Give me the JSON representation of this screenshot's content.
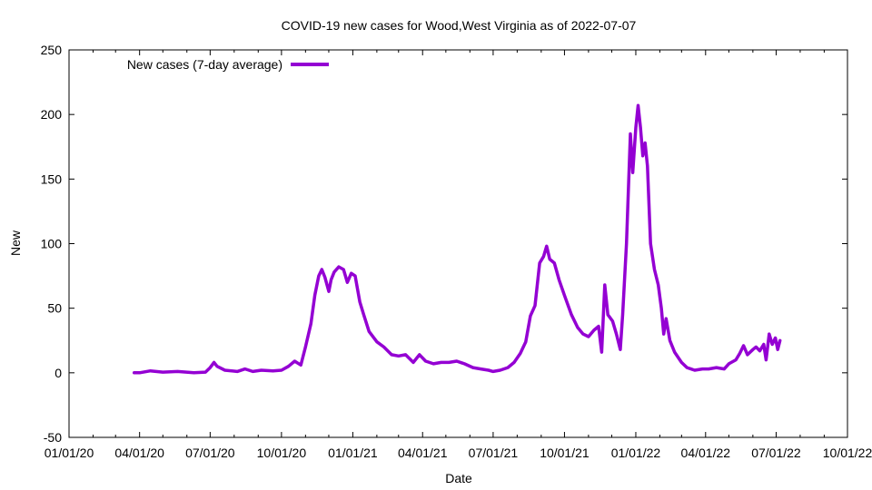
{
  "chart_data": {
    "type": "line",
    "title": "COVID-19 new cases for Wood,West Virginia as of 2022-07-07",
    "xlabel": "Date",
    "ylabel": "New",
    "ylim": [
      -50,
      250
    ],
    "yticks": [
      -50,
      0,
      50,
      100,
      150,
      200,
      250
    ],
    "xlim": [
      "2020-01-01",
      "2022-10-01"
    ],
    "xticks": [
      {
        "date": "2020-01-01",
        "label": "01/01/20"
      },
      {
        "date": "2020-04-01",
        "label": "04/01/20"
      },
      {
        "date": "2020-07-01",
        "label": "07/01/20"
      },
      {
        "date": "2020-10-01",
        "label": "10/01/20"
      },
      {
        "date": "2021-01-01",
        "label": "01/01/21"
      },
      {
        "date": "2021-04-01",
        "label": "04/01/21"
      },
      {
        "date": "2021-07-01",
        "label": "07/01/21"
      },
      {
        "date": "2021-10-01",
        "label": "10/01/21"
      },
      {
        "date": "2022-01-01",
        "label": "01/01/22"
      },
      {
        "date": "2022-04-01",
        "label": "04/01/22"
      },
      {
        "date": "2022-07-01",
        "label": "07/01/22"
      },
      {
        "date": "2022-10-01",
        "label": "10/01/22"
      }
    ],
    "grid": false,
    "legend_position": "top-left",
    "series": [
      {
        "name": "New cases (7-day average)",
        "color": "#9400d3",
        "points": [
          [
            "2020-03-25",
            0
          ],
          [
            "2020-04-01",
            0
          ],
          [
            "2020-04-15",
            1.5
          ],
          [
            "2020-05-01",
            0.5
          ],
          [
            "2020-05-20",
            1
          ],
          [
            "2020-06-10",
            0
          ],
          [
            "2020-06-25",
            0.5
          ],
          [
            "2020-07-01",
            4
          ],
          [
            "2020-07-06",
            8
          ],
          [
            "2020-07-10",
            5
          ],
          [
            "2020-07-20",
            2
          ],
          [
            "2020-08-05",
            1
          ],
          [
            "2020-08-15",
            3
          ],
          [
            "2020-08-25",
            1
          ],
          [
            "2020-09-05",
            2
          ],
          [
            "2020-09-20",
            1.5
          ],
          [
            "2020-10-01",
            2
          ],
          [
            "2020-10-10",
            5
          ],
          [
            "2020-10-18",
            9
          ],
          [
            "2020-10-26",
            6
          ],
          [
            "2020-11-01",
            20
          ],
          [
            "2020-11-08",
            38
          ],
          [
            "2020-11-13",
            60
          ],
          [
            "2020-11-18",
            75
          ],
          [
            "2020-11-22",
            80
          ],
          [
            "2020-11-26",
            74
          ],
          [
            "2020-12-01",
            63
          ],
          [
            "2020-12-04",
            72
          ],
          [
            "2020-12-08",
            78
          ],
          [
            "2020-12-14",
            82
          ],
          [
            "2020-12-20",
            80
          ],
          [
            "2020-12-25",
            70
          ],
          [
            "2020-12-30",
            77
          ],
          [
            "2021-01-04",
            75
          ],
          [
            "2021-01-10",
            55
          ],
          [
            "2021-01-15",
            45
          ],
          [
            "2021-01-22",
            32
          ],
          [
            "2021-02-01",
            24
          ],
          [
            "2021-02-10",
            20
          ],
          [
            "2021-02-20",
            14
          ],
          [
            "2021-03-01",
            13
          ],
          [
            "2021-03-10",
            14
          ],
          [
            "2021-03-20",
            8
          ],
          [
            "2021-03-28",
            14
          ],
          [
            "2021-04-05",
            9
          ],
          [
            "2021-04-15",
            7
          ],
          [
            "2021-04-25",
            8
          ],
          [
            "2021-05-05",
            8
          ],
          [
            "2021-05-15",
            9
          ],
          [
            "2021-05-25",
            7
          ],
          [
            "2021-06-05",
            4
          ],
          [
            "2021-06-15",
            3
          ],
          [
            "2021-06-25",
            2
          ],
          [
            "2021-07-01",
            1
          ],
          [
            "2021-07-10",
            2
          ],
          [
            "2021-07-20",
            4
          ],
          [
            "2021-07-28",
            8
          ],
          [
            "2021-08-05",
            15
          ],
          [
            "2021-08-12",
            24
          ],
          [
            "2021-08-18",
            44
          ],
          [
            "2021-08-24",
            52
          ],
          [
            "2021-08-30",
            85
          ],
          [
            "2021-09-04",
            90
          ],
          [
            "2021-09-08",
            98
          ],
          [
            "2021-09-12",
            88
          ],
          [
            "2021-09-18",
            85
          ],
          [
            "2021-09-24",
            72
          ],
          [
            "2021-10-01",
            60
          ],
          [
            "2021-10-10",
            45
          ],
          [
            "2021-10-18",
            35
          ],
          [
            "2021-10-25",
            30
          ],
          [
            "2021-11-01",
            28
          ],
          [
            "2021-11-08",
            33
          ],
          [
            "2021-11-14",
            36
          ],
          [
            "2021-11-18",
            16
          ],
          [
            "2021-11-22",
            68
          ],
          [
            "2021-11-26",
            45
          ],
          [
            "2021-12-02",
            40
          ],
          [
            "2021-12-07",
            30
          ],
          [
            "2021-12-12",
            18
          ],
          [
            "2021-12-15",
            45
          ],
          [
            "2021-12-20",
            100
          ],
          [
            "2021-12-25",
            185
          ],
          [
            "2021-12-28",
            155
          ],
          [
            "2022-01-01",
            190
          ],
          [
            "2022-01-04",
            207
          ],
          [
            "2022-01-07",
            190
          ],
          [
            "2022-01-10",
            168
          ],
          [
            "2022-01-13",
            178
          ],
          [
            "2022-01-16",
            160
          ],
          [
            "2022-01-20",
            100
          ],
          [
            "2022-01-25",
            80
          ],
          [
            "2022-01-30",
            68
          ],
          [
            "2022-02-03",
            50
          ],
          [
            "2022-02-06",
            30
          ],
          [
            "2022-02-09",
            42
          ],
          [
            "2022-02-14",
            25
          ],
          [
            "2022-02-20",
            16
          ],
          [
            "2022-03-01",
            8
          ],
          [
            "2022-03-08",
            4
          ],
          [
            "2022-03-18",
            2
          ],
          [
            "2022-03-28",
            3
          ],
          [
            "2022-04-05",
            3
          ],
          [
            "2022-04-15",
            4
          ],
          [
            "2022-04-25",
            3
          ],
          [
            "2022-05-01",
            7
          ],
          [
            "2022-05-10",
            10
          ],
          [
            "2022-05-15",
            15
          ],
          [
            "2022-05-20",
            21
          ],
          [
            "2022-05-25",
            14
          ],
          [
            "2022-06-01",
            18
          ],
          [
            "2022-06-05",
            20
          ],
          [
            "2022-06-10",
            17
          ],
          [
            "2022-06-15",
            22
          ],
          [
            "2022-06-18",
            10
          ],
          [
            "2022-06-22",
            30
          ],
          [
            "2022-06-26",
            22
          ],
          [
            "2022-06-30",
            27
          ],
          [
            "2022-07-03",
            18
          ],
          [
            "2022-07-06",
            25
          ]
        ]
      }
    ]
  }
}
